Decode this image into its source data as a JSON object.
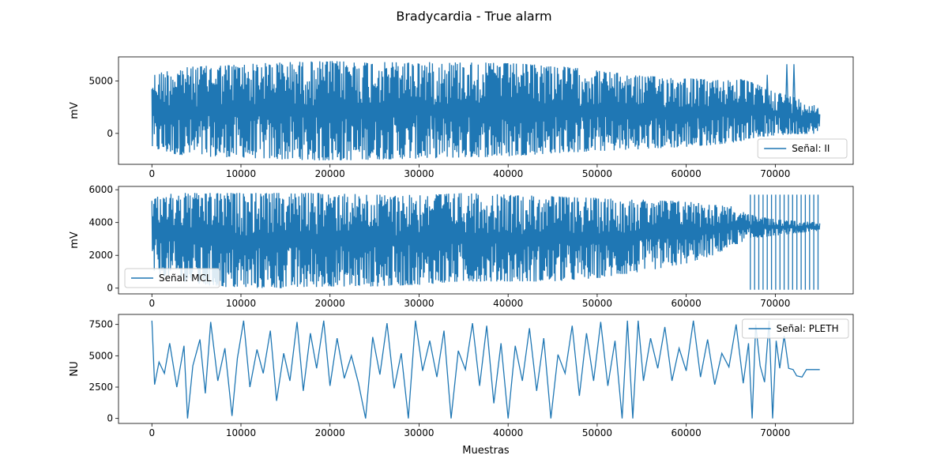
{
  "figure": {
    "title": "Bradycardia - True alarm",
    "xlabel": "Muestras"
  },
  "colors": {
    "series": "#1f77b4",
    "axes": "#000000",
    "legend_border": "#cccccc"
  },
  "chart_data": [
    {
      "type": "line",
      "ylabel": "mV",
      "legend": "Señal: II",
      "legend_loc": "lower-right",
      "grid": false,
      "xlim": [
        -3750,
        78750
      ],
      "ylim": [
        -2950,
        7300
      ],
      "xticks": [
        0,
        10000,
        20000,
        30000,
        40000,
        50000,
        60000,
        70000
      ],
      "yticks": [
        0,
        5000
      ],
      "envelope": {
        "x": [
          0,
          2500,
          5000,
          10000,
          15000,
          20000,
          25000,
          30000,
          35000,
          40000,
          45000,
          50000,
          55000,
          60000,
          63000,
          66000,
          67000,
          70000,
          72000,
          75000
        ],
        "upper": [
          5600,
          6200,
          6400,
          6600,
          6800,
          6900,
          6800,
          6800,
          6800,
          6700,
          6500,
          6000,
          5500,
          5300,
          5100,
          5200,
          5000,
          4000,
          3500,
          2500
        ],
        "lower": [
          -1500,
          -2000,
          -2200,
          -2300,
          -2500,
          -2600,
          -2500,
          -2400,
          -2300,
          -2200,
          -1900,
          -1700,
          -1500,
          -1300,
          -1100,
          -800,
          -500,
          -200,
          -100,
          0
        ],
        "peaks_x": [
          69100,
          71300,
          72100
        ],
        "peaks_y": [
          5600,
          6600,
          6600
        ]
      }
    },
    {
      "type": "line",
      "ylabel": "mV",
      "legend": "Señal: MCL",
      "legend_loc": "lower-left",
      "grid": false,
      "xlim": [
        -3750,
        78750
      ],
      "ylim": [
        -350,
        6200
      ],
      "xticks": [
        0,
        10000,
        20000,
        30000,
        40000,
        50000,
        60000,
        70000
      ],
      "yticks": [
        0,
        2000,
        4000,
        6000
      ],
      "envelope": {
        "x": [
          0,
          2500,
          5000,
          10000,
          15000,
          20000,
          25000,
          30000,
          35000,
          40000,
          45000,
          50000,
          55000,
          60000,
          63000,
          65000,
          67000,
          70000,
          75000
        ],
        "upper": [
          5500,
          5800,
          5800,
          5800,
          5800,
          5800,
          5700,
          5700,
          5800,
          5700,
          5600,
          5500,
          5400,
          5300,
          5100,
          5000,
          4500,
          4200,
          4000
        ],
        "lower": [
          1000,
          500,
          200,
          0,
          0,
          100,
          100,
          200,
          400,
          400,
          400,
          600,
          1000,
          1500,
          2000,
          2500,
          3000,
          3200,
          3500
        ],
        "spikes_x0": 67200,
        "spikes_x1": 74800,
        "spikes_n": 17,
        "spikes_hi": 5700,
        "spikes_lo": -100
      }
    },
    {
      "type": "line",
      "ylabel": "NU",
      "legend": "Señal: PLETH",
      "legend_loc": "upper-right",
      "grid": false,
      "xlim": [
        -3750,
        78750
      ],
      "ylim": [
        -400,
        8300
      ],
      "xticks": [
        0,
        10000,
        20000,
        30000,
        40000,
        50000,
        60000,
        70000
      ],
      "yticks": [
        0,
        2500,
        5000,
        7500
      ],
      "x": [
        0,
        300,
        800,
        1400,
        2000,
        2800,
        3600,
        4000,
        4600,
        5400,
        6000,
        6600,
        7400,
        8200,
        9000,
        9600,
        10300,
        11000,
        11800,
        12500,
        13300,
        14000,
        14800,
        15500,
        16300,
        17000,
        17800,
        18500,
        19300,
        20000,
        20800,
        21600,
        22400,
        23200,
        24000,
        24800,
        25600,
        26400,
        27200,
        28000,
        28800,
        29600,
        30400,
        31200,
        32000,
        32800,
        33600,
        34400,
        35200,
        36000,
        36800,
        37600,
        38400,
        39200,
        40000,
        40800,
        41600,
        42400,
        43200,
        44000,
        44800,
        45600,
        46400,
        47200,
        48000,
        48800,
        49600,
        50400,
        51200,
        52000,
        52800,
        53400,
        54000,
        54600,
        55200,
        56000,
        56800,
        57600,
        58400,
        59200,
        60000,
        60800,
        61600,
        62400,
        63200,
        64000,
        64800,
        65600,
        66400,
        67000,
        67400,
        67800,
        68300,
        68800,
        69300,
        69700,
        70100,
        70500,
        71000,
        71500,
        72000,
        72400,
        73000,
        73500,
        75000
      ],
      "y": [
        7800,
        2700,
        4500,
        3600,
        6000,
        2500,
        5800,
        0,
        4200,
        6300,
        2000,
        7700,
        3000,
        5600,
        200,
        4800,
        7800,
        2500,
        5500,
        3600,
        7000,
        1400,
        5200,
        3000,
        7700,
        2200,
        6800,
        4000,
        7800,
        2600,
        6400,
        3200,
        5000,
        2800,
        0,
        6500,
        3500,
        7600,
        2400,
        5200,
        0,
        7800,
        3800,
        6200,
        3300,
        7000,
        0,
        5400,
        3900,
        7600,
        2600,
        7400,
        1200,
        6000,
        0,
        5800,
        3000,
        7200,
        2200,
        6400,
        0,
        5100,
        3600,
        7400,
        1800,
        6800,
        3000,
        7700,
        2600,
        6200,
        0,
        7800,
        0,
        7800,
        3000,
        6400,
        4000,
        7300,
        3000,
        5600,
        3800,
        7800,
        3300,
        6300,
        2700,
        5200,
        4100,
        7500,
        2800,
        6000,
        0,
        7500,
        4200,
        2900,
        7800,
        0,
        6200,
        4000,
        6600,
        4000,
        3900,
        3400,
        3300,
        3900,
        3900
      ]
    }
  ]
}
